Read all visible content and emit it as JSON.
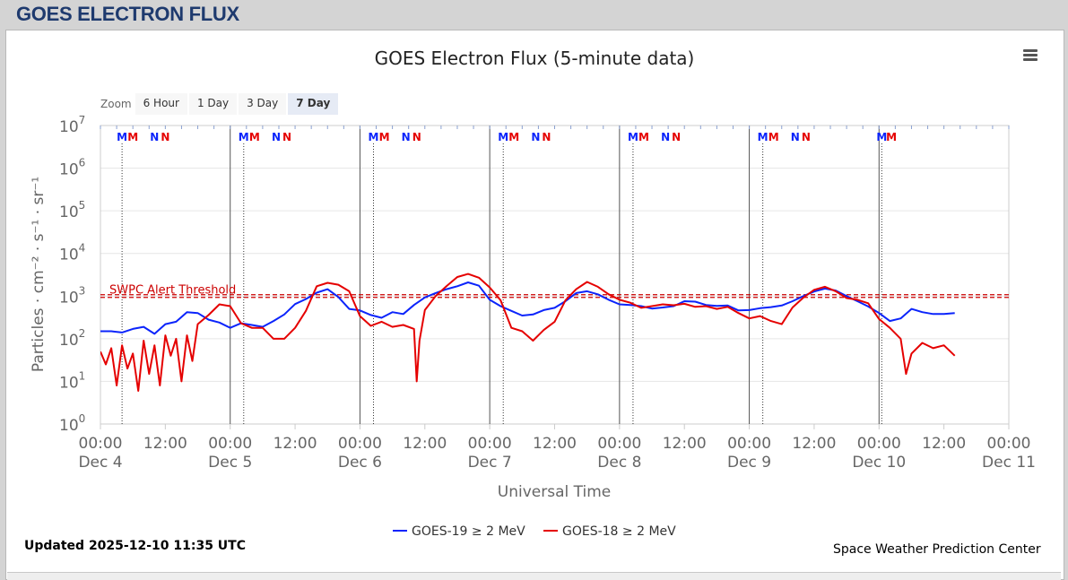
{
  "page": {
    "header": "GOES ELECTRON FLUX"
  },
  "zoom": {
    "label": "Zoom",
    "buttons": [
      "6 Hour",
      "1 Day",
      "3 Day",
      "7 Day"
    ],
    "active": "7 Day"
  },
  "footer": {
    "updated": "Updated 2025-12-10 11:35 UTC",
    "credit": "Space Weather Prediction Center"
  },
  "chart_data": {
    "type": "line",
    "title": "GOES Electron Flux (5-minute data)",
    "xlabel": "Universal Time",
    "ylabel": "Particles · cm⁻² · s⁻¹ · sr⁻¹",
    "y_scale": "log",
    "ylim": [
      1,
      10000000
    ],
    "y_ticks": [
      {
        "base": "10",
        "exp": "0"
      },
      {
        "base": "10",
        "exp": "1"
      },
      {
        "base": "10",
        "exp": "2"
      },
      {
        "base": "10",
        "exp": "3"
      },
      {
        "base": "10",
        "exp": "4"
      },
      {
        "base": "10",
        "exp": "5"
      },
      {
        "base": "10",
        "exp": "6"
      },
      {
        "base": "10",
        "exp": "7"
      }
    ],
    "xlim": [
      "2025-12-04 00:00",
      "2025-12-11 00:00"
    ],
    "x_ticks": [
      {
        "time": "00:00",
        "date": "Dec 4"
      },
      {
        "time": "12:00",
        "date": ""
      },
      {
        "time": "00:00",
        "date": "Dec 5"
      },
      {
        "time": "12:00",
        "date": ""
      },
      {
        "time": "00:00",
        "date": "Dec 6"
      },
      {
        "time": "12:00",
        "date": ""
      },
      {
        "time": "00:00",
        "date": "Dec 7"
      },
      {
        "time": "12:00",
        "date": ""
      },
      {
        "time": "00:00",
        "date": "Dec 8"
      },
      {
        "time": "12:00",
        "date": ""
      },
      {
        "time": "00:00",
        "date": "Dec 9"
      },
      {
        "time": "12:00",
        "date": ""
      },
      {
        "time": "00:00",
        "date": "Dec 10"
      },
      {
        "time": "12:00",
        "date": ""
      },
      {
        "time": "00:00",
        "date": "Dec 11"
      }
    ],
    "threshold": {
      "label": "SWPC Alert Threshold",
      "value": 1000,
      "color": "#cc0000"
    },
    "markers": [
      {
        "label": "M",
        "day": 0,
        "hour": 4.0,
        "color": "#0b24fb"
      },
      {
        "label": "M",
        "day": 0,
        "hour": 6.0,
        "color": "#e50000"
      },
      {
        "label": "N",
        "day": 0,
        "hour": 10.0,
        "color": "#0b24fb"
      },
      {
        "label": "N",
        "day": 0,
        "hour": 12.0,
        "color": "#e50000"
      },
      {
        "label": "M",
        "day": 1,
        "hour": 2.5,
        "color": "#0b24fb"
      },
      {
        "label": "M",
        "day": 1,
        "hour": 4.5,
        "color": "#e50000"
      },
      {
        "label": "N",
        "day": 1,
        "hour": 8.5,
        "color": "#0b24fb"
      },
      {
        "label": "N",
        "day": 1,
        "hour": 10.5,
        "color": "#e50000"
      },
      {
        "label": "M",
        "day": 2,
        "hour": 2.5,
        "color": "#0b24fb"
      },
      {
        "label": "M",
        "day": 2,
        "hour": 4.5,
        "color": "#e50000"
      },
      {
        "label": "N",
        "day": 2,
        "hour": 8.5,
        "color": "#0b24fb"
      },
      {
        "label": "N",
        "day": 2,
        "hour": 10.5,
        "color": "#e50000"
      },
      {
        "label": "M",
        "day": 3,
        "hour": 2.5,
        "color": "#0b24fb"
      },
      {
        "label": "M",
        "day": 3,
        "hour": 4.5,
        "color": "#e50000"
      },
      {
        "label": "N",
        "day": 3,
        "hour": 8.5,
        "color": "#0b24fb"
      },
      {
        "label": "N",
        "day": 3,
        "hour": 10.5,
        "color": "#e50000"
      },
      {
        "label": "M",
        "day": 4,
        "hour": 2.5,
        "color": "#0b24fb"
      },
      {
        "label": "M",
        "day": 4,
        "hour": 4.5,
        "color": "#e50000"
      },
      {
        "label": "N",
        "day": 4,
        "hour": 8.5,
        "color": "#0b24fb"
      },
      {
        "label": "N",
        "day": 4,
        "hour": 10.5,
        "color": "#e50000"
      },
      {
        "label": "M",
        "day": 5,
        "hour": 2.5,
        "color": "#0b24fb"
      },
      {
        "label": "M",
        "day": 5,
        "hour": 4.5,
        "color": "#e50000"
      },
      {
        "label": "N",
        "day": 5,
        "hour": 8.5,
        "color": "#0b24fb"
      },
      {
        "label": "N",
        "day": 5,
        "hour": 10.5,
        "color": "#e50000"
      },
      {
        "label": "M",
        "day": 6,
        "hour": 0.5,
        "color": "#0b24fb"
      },
      {
        "label": "M",
        "day": 6,
        "hour": 2.3,
        "color": "#e50000"
      }
    ],
    "series": [
      {
        "name": "GOES-19 ≥ 2 MeV",
        "color": "#0b24fb",
        "points": [
          [
            0,
            150
          ],
          [
            2,
            150
          ],
          [
            4,
            140
          ],
          [
            6,
            170
          ],
          [
            8,
            190
          ],
          [
            10,
            130
          ],
          [
            12,
            220
          ],
          [
            14,
            250
          ],
          [
            16,
            420
          ],
          [
            18,
            400
          ],
          [
            20,
            280
          ],
          [
            22,
            240
          ],
          [
            24,
            180
          ],
          [
            26,
            230
          ],
          [
            28,
            210
          ],
          [
            30,
            190
          ],
          [
            32,
            260
          ],
          [
            34,
            370
          ],
          [
            36,
            650
          ],
          [
            38,
            850
          ],
          [
            40,
            1200
          ],
          [
            42,
            1450
          ],
          [
            44,
            950
          ],
          [
            46,
            500
          ],
          [
            48,
            460
          ],
          [
            50,
            360
          ],
          [
            52,
            310
          ],
          [
            54,
            420
          ],
          [
            56,
            380
          ],
          [
            58,
            620
          ],
          [
            60,
            930
          ],
          [
            62,
            1180
          ],
          [
            64,
            1450
          ],
          [
            66,
            1700
          ],
          [
            68,
            2100
          ],
          [
            70,
            1750
          ],
          [
            72,
            820
          ],
          [
            74,
            580
          ],
          [
            76,
            450
          ],
          [
            78,
            350
          ],
          [
            80,
            370
          ],
          [
            82,
            470
          ],
          [
            84,
            530
          ],
          [
            86,
            760
          ],
          [
            88,
            1180
          ],
          [
            90,
            1300
          ],
          [
            92,
            1100
          ],
          [
            94,
            820
          ],
          [
            96,
            640
          ],
          [
            98,
            620
          ],
          [
            100,
            580
          ],
          [
            102,
            510
          ],
          [
            104,
            540
          ],
          [
            106,
            580
          ],
          [
            108,
            760
          ],
          [
            110,
            740
          ],
          [
            112,
            620
          ],
          [
            114,
            590
          ],
          [
            116,
            600
          ],
          [
            118,
            460
          ],
          [
            120,
            470
          ],
          [
            122,
            520
          ],
          [
            124,
            550
          ],
          [
            126,
            600
          ],
          [
            128,
            760
          ],
          [
            130,
            1000
          ],
          [
            132,
            1280
          ],
          [
            134,
            1500
          ],
          [
            136,
            1350
          ],
          [
            138,
            1000
          ],
          [
            140,
            760
          ],
          [
            142,
            570
          ],
          [
            144,
            400
          ],
          [
            146,
            260
          ],
          [
            148,
            300
          ],
          [
            150,
            500
          ],
          [
            152,
            420
          ],
          [
            154,
            380
          ],
          [
            156,
            380
          ],
          [
            158,
            400
          ]
        ]
      },
      {
        "name": "GOES-18 ≥ 2 MeV",
        "color": "#e50000",
        "points": [
          [
            0,
            50
          ],
          [
            1,
            25
          ],
          [
            2,
            60
          ],
          [
            3,
            8
          ],
          [
            4,
            70
          ],
          [
            5,
            20
          ],
          [
            6,
            45
          ],
          [
            7,
            6
          ],
          [
            8,
            90
          ],
          [
            9,
            15
          ],
          [
            10,
            70
          ],
          [
            11,
            8
          ],
          [
            12,
            120
          ],
          [
            13,
            40
          ],
          [
            14,
            100
          ],
          [
            15,
            10
          ],
          [
            16,
            120
          ],
          [
            17,
            30
          ],
          [
            18,
            220
          ],
          [
            20,
            360
          ],
          [
            22,
            640
          ],
          [
            24,
            580
          ],
          [
            26,
            230
          ],
          [
            28,
            180
          ],
          [
            30,
            180
          ],
          [
            32,
            100
          ],
          [
            34,
            100
          ],
          [
            36,
            180
          ],
          [
            38,
            450
          ],
          [
            40,
            1700
          ],
          [
            42,
            2050
          ],
          [
            44,
            1850
          ],
          [
            46,
            1300
          ],
          [
            48,
            340
          ],
          [
            50,
            200
          ],
          [
            52,
            250
          ],
          [
            54,
            190
          ],
          [
            56,
            210
          ],
          [
            58,
            170
          ],
          [
            58.5,
            10
          ],
          [
            59,
            90
          ],
          [
            60,
            470
          ],
          [
            62,
            1000
          ],
          [
            64,
            1700
          ],
          [
            66,
            2800
          ],
          [
            68,
            3300
          ],
          [
            70,
            2700
          ],
          [
            72,
            1600
          ],
          [
            74,
            800
          ],
          [
            76,
            180
          ],
          [
            78,
            150
          ],
          [
            80,
            90
          ],
          [
            82,
            160
          ],
          [
            84,
            250
          ],
          [
            86,
            800
          ],
          [
            88,
            1450
          ],
          [
            90,
            2150
          ],
          [
            92,
            1650
          ],
          [
            94,
            1100
          ],
          [
            96,
            820
          ],
          [
            98,
            700
          ],
          [
            100,
            530
          ],
          [
            102,
            580
          ],
          [
            104,
            640
          ],
          [
            106,
            610
          ],
          [
            108,
            660
          ],
          [
            110,
            560
          ],
          [
            112,
            580
          ],
          [
            114,
            500
          ],
          [
            116,
            560
          ],
          [
            118,
            400
          ],
          [
            120,
            300
          ],
          [
            122,
            340
          ],
          [
            124,
            260
          ],
          [
            126,
            220
          ],
          [
            128,
            540
          ],
          [
            130,
            920
          ],
          [
            132,
            1400
          ],
          [
            134,
            1650
          ],
          [
            136,
            1300
          ],
          [
            138,
            900
          ],
          [
            140,
            820
          ],
          [
            142,
            680
          ],
          [
            144,
            290
          ],
          [
            146,
            180
          ],
          [
            148,
            100
          ],
          [
            149,
            15
          ],
          [
            150,
            45
          ],
          [
            152,
            80
          ],
          [
            154,
            60
          ],
          [
            156,
            70
          ],
          [
            158,
            40
          ]
        ]
      }
    ],
    "legend": {
      "position": "bottom-center"
    },
    "grid": true
  }
}
